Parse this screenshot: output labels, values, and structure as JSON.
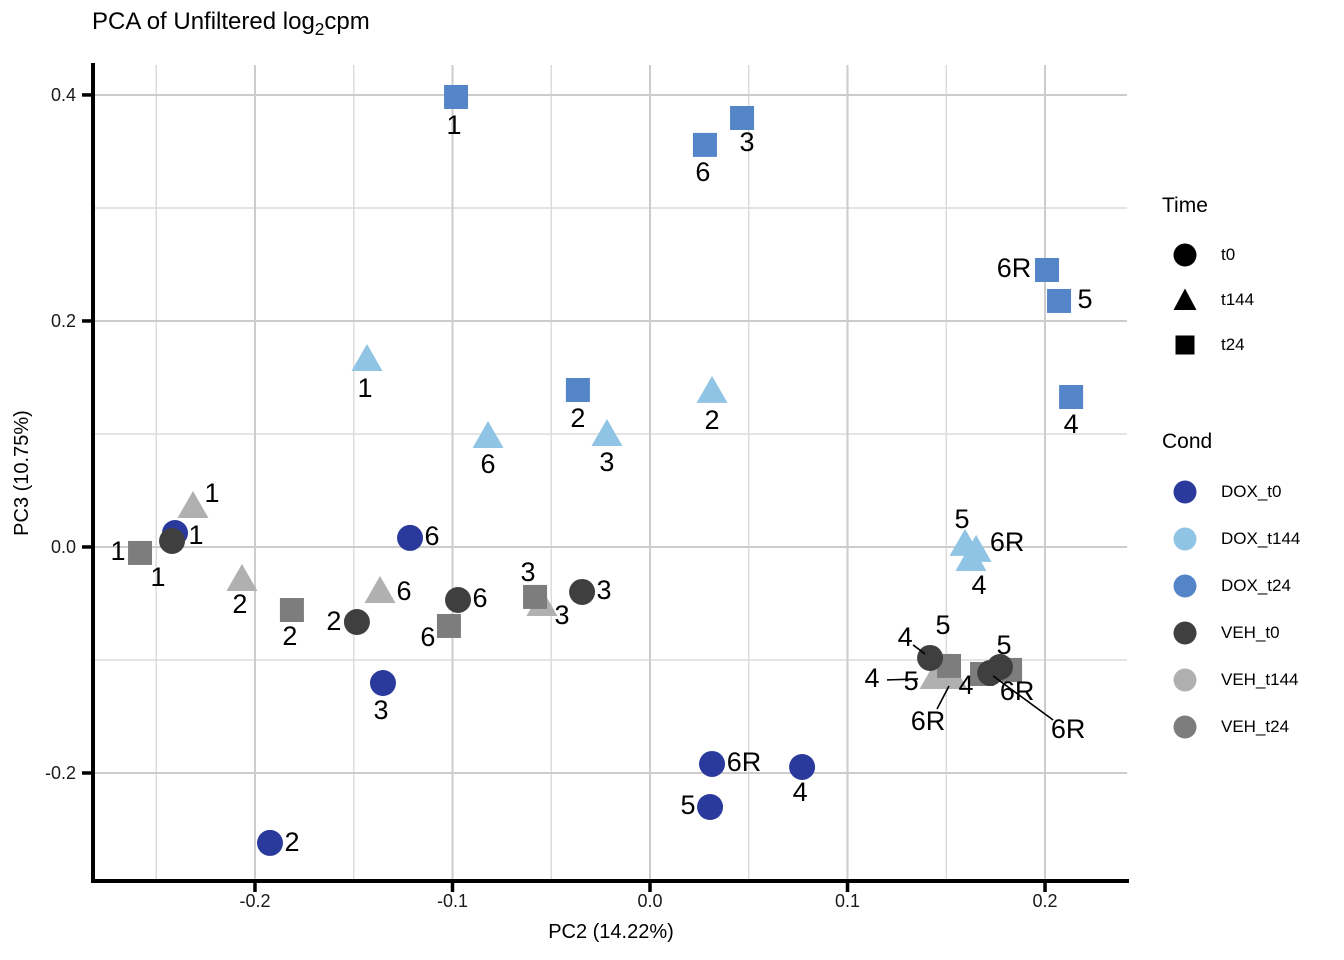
{
  "title": {
    "main": "PCA of Unfiltered log",
    "subscript": "2",
    "tail": "cpm"
  },
  "axes": {
    "x": {
      "title": "PC2 (14.22%)",
      "tick_labels": [
        "-0.2",
        "-0.1",
        "0.0",
        "0.1",
        "0.2"
      ],
      "tick_values": [
        -0.2,
        -0.1,
        0,
        0.1,
        0.2
      ],
      "minor_ticks": [
        -0.25,
        -0.15,
        -0.05,
        0.05,
        0.15
      ]
    },
    "y": {
      "title": "PC3 (10.75%)",
      "tick_labels": [
        "0.4",
        "0.2",
        "0.0",
        "-0.2"
      ],
      "tick_values": [
        0.4,
        0.2,
        0,
        -0.2
      ],
      "minor_ticks": [
        0.3,
        0.1,
        -0.1
      ]
    }
  },
  "legend": {
    "time": {
      "title": "Time",
      "symbol_color": "#000000",
      "items": [
        {
          "label": "t0",
          "shape": "circle"
        },
        {
          "label": "t144",
          "shape": "triangle"
        },
        {
          "label": "t24",
          "shape": "square"
        }
      ]
    },
    "cond": {
      "title": "Cond",
      "items": [
        {
          "label": "DOX_t0",
          "color": "#2a3a9c"
        },
        {
          "label": "DOX_t144",
          "color": "#8fc4e4"
        },
        {
          "label": "DOX_t24",
          "color": "#5585c9"
        },
        {
          "label": "VEH_t0",
          "color": "#3f3f3f"
        },
        {
          "label": "VEH_t144",
          "color": "#b0b0b0"
        },
        {
          "label": "VEH_t24",
          "color": "#7d7d7d"
        }
      ]
    }
  },
  "chart_data": {
    "type": "scatter",
    "title": "PCA of Unfiltered log2cpm",
    "xlabel": "PC2 (14.22%)",
    "ylabel": "PC3 (10.75%)",
    "xlim": [
      -0.281,
      0.2415
    ],
    "ylim": [
      -0.2947,
      0.4265
    ],
    "grid": true,
    "legend_position": "right",
    "shape_by": "Time",
    "color_by": "Cond",
    "shapes": {
      "t0": "circle",
      "t144": "triangle",
      "t24": "square"
    },
    "colors": {
      "DOX_t0": "#2a3a9c",
      "DOX_t144": "#8fc4e4",
      "DOX_t24": "#5585c9",
      "VEH_t0": "#3f3f3f",
      "VEH_t144": "#b0b0b0",
      "VEH_t24": "#7d7d7d"
    },
    "series": [
      {
        "name": "DOX_t0",
        "time": "t0",
        "points": [
          {
            "sample": "1",
            "x": -0.2405,
            "y": 0.0124,
            "dx": 21,
            "dy": 2
          },
          {
            "sample": "6",
            "x": -0.1215,
            "y": 0.008,
            "dx": 22,
            "dy": -2
          },
          {
            "sample": "3",
            "x": -0.1352,
            "y": -0.1204,
            "dx": -2,
            "dy": 27
          },
          {
            "sample": "2",
            "x": -0.1924,
            "y": -0.2619,
            "dx": 22,
            "dy": -1
          },
          {
            "sample": "5",
            "x": 0.0304,
            "y": -0.2301,
            "dx": -22,
            "dy": -2
          },
          {
            "sample": "6R",
            "x": 0.0314,
            "y": -0.192,
            "dx": 32,
            "dy": -2
          },
          {
            "sample": "4",
            "x": 0.077,
            "y": -0.1947,
            "dx": -2,
            "dy": 25
          }
        ]
      },
      {
        "name": "DOX_t144",
        "time": "t144",
        "points": [
          {
            "sample": "1",
            "x": -0.1433,
            "y": 0.1655,
            "dx": -2,
            "dy": 28
          },
          {
            "sample": "6",
            "x": -0.082,
            "y": 0.0973,
            "dx": 0,
            "dy": 27
          },
          {
            "sample": "3",
            "x": -0.0218,
            "y": 0.0991,
            "dx": 0,
            "dy": 27
          },
          {
            "sample": "2",
            "x": 0.0314,
            "y": 0.1372,
            "dx": 0,
            "dy": 28
          },
          {
            "sample": "5",
            "x": 0.1595,
            "y": 0.0018,
            "dx": -3,
            "dy": -26
          },
          {
            "sample": "6R",
            "x": 0.1651,
            "y": -0.0035,
            "dx": 31,
            "dy": -9
          },
          {
            "sample": "4",
            "x": 0.1625,
            "y": -0.0115,
            "dx": 8,
            "dy": 25
          }
        ]
      },
      {
        "name": "DOX_t24",
        "time": "t24",
        "points": [
          {
            "sample": "1",
            "x": -0.0982,
            "y": 0.3982,
            "dx": -2,
            "dy": 28
          },
          {
            "sample": "6",
            "x": 0.0278,
            "y": 0.3558,
            "dx": -2,
            "dy": 27
          },
          {
            "sample": "3",
            "x": 0.0466,
            "y": 0.3796,
            "dx": 5,
            "dy": 24
          },
          {
            "sample": "2",
            "x": -0.0365,
            "y": 0.1389,
            "dx": 0,
            "dy": 28
          },
          {
            "sample": "6R",
            "x": 0.201,
            "y": 0.2451,
            "dx": -33,
            "dy": -2
          },
          {
            "sample": "5",
            "x": 0.2071,
            "y": 0.2177,
            "dx": 26,
            "dy": -2
          },
          {
            "sample": "4",
            "x": 0.2132,
            "y": 0.1327,
            "dx": 0,
            "dy": 27
          }
        ]
      },
      {
        "name": "VEH_t144",
        "time": "t144",
        "points": [
          {
            "sample": "1",
            "x": -0.2314,
            "y": 0.0354,
            "dx": 19,
            "dy": -14
          },
          {
            "sample": "2",
            "x": -0.2066,
            "y": -0.0292,
            "dx": -2,
            "dy": 24
          },
          {
            "sample": "6",
            "x": -0.1367,
            "y": -0.0398,
            "dx": 24,
            "dy": -1
          },
          {
            "sample": "3",
            "x": -0.0547,
            "y": -0.0513,
            "dx": 20,
            "dy": 10
          },
          {
            "sample": "5",
            "x": 0.1494,
            "y": -0.1097,
            "dx": -34,
            "dy": 10
          },
          {
            "sample": "4",
            "x": 0.1443,
            "y": -0.1159,
            "dx": -63,
            "dy": 0,
            "leader": [
              -48,
              2,
              -17,
              1
            ]
          },
          {
            "sample": "6R",
            "x": 0.1529,
            "y": -0.1159,
            "dx": -24,
            "dy": 43,
            "leader": [
              -15,
              31,
              -3,
              8
            ]
          }
        ]
      },
      {
        "name": "VEH_t24",
        "time": "t24",
        "points": [
          {
            "sample": "1",
            "x": -0.2582,
            "y": -0.0053,
            "dx": -22,
            "dy": -2
          },
          {
            "sample": "2",
            "x": -0.1813,
            "y": -0.0558,
            "dx": -2,
            "dy": 26
          },
          {
            "sample": "6",
            "x": -0.1018,
            "y": -0.0699,
            "dx": -21,
            "dy": 11
          },
          {
            "sample": "3",
            "x": -0.0582,
            "y": -0.0442,
            "dx": -7,
            "dy": -25
          },
          {
            "sample": "5",
            "x": 0.1514,
            "y": -0.1053,
            "dx": -6,
            "dy": -41
          },
          {
            "sample": "4",
            "x": 0.1681,
            "y": -0.1124,
            "dx": -16,
            "dy": 11
          },
          {
            "sample": "6R",
            "x": 0.1823,
            "y": -0.1088,
            "dx": 7,
            "dy": 21
          }
        ]
      },
      {
        "name": "VEH_t0",
        "time": "t0",
        "points": [
          {
            "sample": "1",
            "x": -0.242,
            "y": 0.0053,
            "dx": -14,
            "dy": 36
          },
          {
            "sample": "2",
            "x": -0.1484,
            "y": -0.0664,
            "dx": -23,
            "dy": -1
          },
          {
            "sample": "3",
            "x": -0.0344,
            "y": -0.0398,
            "dx": 22,
            "dy": -2
          },
          {
            "sample": "6",
            "x": -0.0972,
            "y": -0.0469,
            "dx": 22,
            "dy": -2
          },
          {
            "sample": "4",
            "x": 0.1418,
            "y": -0.0982,
            "dx": -25,
            "dy": -21,
            "leader": [
              -17,
              -13,
              -5,
              -4
            ]
          },
          {
            "sample": "5",
            "x": 0.1772,
            "y": -0.1062,
            "dx": 4,
            "dy": -22
          },
          {
            "sample": "6R",
            "x": 0.1722,
            "y": -0.1115,
            "dx": 78,
            "dy": 56,
            "leader": [
              63,
              47,
              3,
              3
            ]
          }
        ]
      }
    ]
  }
}
